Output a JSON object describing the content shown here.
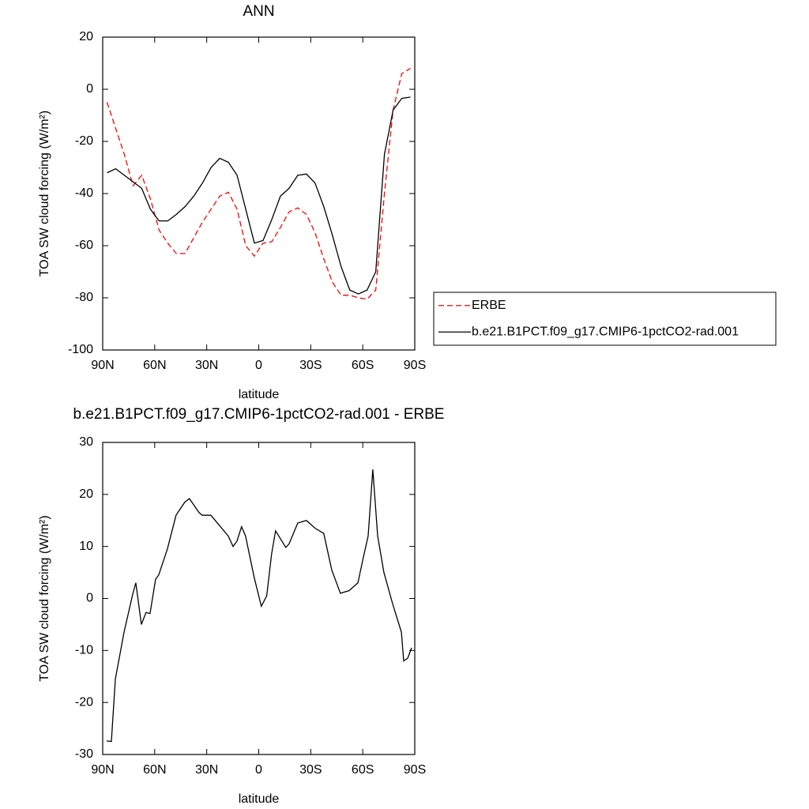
{
  "chart_data": [
    {
      "type": "line",
      "title": "ANN",
      "xlabel": "latitude",
      "ylabel": "TOA SW cloud forcing (W/m²)",
      "x": [
        87.5,
        82.5,
        77.5,
        72.5,
        67.5,
        62.5,
        57.5,
        52.5,
        47.5,
        42.5,
        37.5,
        32.5,
        27.5,
        22.5,
        17.5,
        12.5,
        7.5,
        2.5,
        -2.5,
        -7.5,
        -12.5,
        -17.5,
        -22.5,
        -27.5,
        -32.5,
        -37.5,
        -42.5,
        -47.5,
        -52.5,
        -57.5,
        -62.5,
        -67.5,
        -72.5,
        -77.5,
        -82.5,
        -87.5
      ],
      "series": [
        {
          "name": "ERBE",
          "color": "#ff0000",
          "line_style": "dashed",
          "values": [
            -5,
            -15,
            -25,
            -37,
            -33,
            -42,
            -54,
            -59,
            -63,
            -63,
            -57,
            -51,
            -46,
            -41,
            -39.5,
            -46,
            -60,
            -64,
            -59,
            -58.5,
            -53,
            -47,
            -45.5,
            -48,
            -55,
            -65,
            -74,
            -79,
            -79,
            -80,
            -80.5,
            -77,
            -40,
            -8,
            6,
            8
          ]
        },
        {
          "name": "b.e21.B1PCT.f09_g17.CMIP6-1pctCO2-rad.001",
          "color": "#000000",
          "line_style": "solid",
          "values": [
            -32,
            -30.5,
            -33,
            -35.5,
            -38,
            -46,
            -50.5,
            -50.5,
            -48,
            -45,
            -41,
            -36,
            -30,
            -26.5,
            -28,
            -33,
            -46,
            -59,
            -58,
            -50,
            -41,
            -38,
            -33,
            -32.5,
            -36,
            -45,
            -56,
            -68,
            -77,
            -78.5,
            -77,
            -70,
            -25,
            -8,
            -3.5,
            -3
          ]
        }
      ],
      "xlim": [
        90,
        -90
      ],
      "xticks": [
        {
          "value": 90,
          "label": "90N"
        },
        {
          "value": 60,
          "label": "60N"
        },
        {
          "value": 30,
          "label": "30N"
        },
        0,
        {
          "value": -30,
          "label": "30S"
        },
        {
          "value": -60,
          "label": "60S"
        },
        {
          "value": -90,
          "label": "90S"
        }
      ],
      "ylim": [
        -100,
        20
      ],
      "yticks": [
        -100,
        -80,
        -60,
        -40,
        -20,
        0,
        20
      ],
      "grid": false,
      "legend": "outside-right"
    },
    {
      "type": "line",
      "title": "b.e21.B1PCT.f09_g17.CMIP6-1pctCO2-rad.001 - ERBE",
      "xlabel": "latitude",
      "ylabel": "TOA SW cloud forcing (W/m²)",
      "x": [
        87.7,
        85,
        82.7,
        77.7,
        72.7,
        70.9,
        67.7,
        65,
        62.7,
        59.5,
        57.7,
        52.7,
        47.7,
        42.7,
        40,
        34.4,
        32.6,
        27.6,
        22.6,
        17.6,
        14.8,
        12.6,
        9.9,
        7.6,
        2.6,
        -1.5,
        -4.6,
        -7.4,
        -9.7,
        -12.5,
        -15.6,
        -17.5,
        -22.5,
        -27.5,
        -32.5,
        -37.5,
        -42.1,
        -47.1,
        -52.1,
        -57.2,
        -60.4,
        -63.1,
        -65.8,
        -68.6,
        -72.2,
        -77.2,
        -82.3,
        -83.6,
        -85.9,
        -88.2
      ],
      "series": [
        {
          "color": "#000000",
          "line_style": "solid",
          "values": [
            -27.4,
            -27.5,
            -15.5,
            -6.5,
            0.8,
            3,
            -5,
            -2.7,
            -2.9,
            3.7,
            4.5,
            9.5,
            16,
            18.5,
            19.2,
            16.5,
            16,
            16,
            14,
            12,
            10,
            11,
            13.8,
            12,
            4,
            -1.5,
            0.5,
            8.5,
            13,
            11.5,
            9.8,
            10.5,
            14.5,
            15,
            13.5,
            12.5,
            5.5,
            1,
            1.5,
            3,
            8,
            12,
            24.8,
            12,
            5,
            -1,
            -6.5,
            -12,
            -11.5,
            -9.5
          ]
        }
      ],
      "xlim": [
        90,
        -90
      ],
      "xticks": [
        {
          "value": 90,
          "label": "90N"
        },
        {
          "value": 60,
          "label": "60N"
        },
        {
          "value": 30,
          "label": "30N"
        },
        0,
        {
          "value": -30,
          "label": "30S"
        },
        {
          "value": -60,
          "label": "60S"
        },
        {
          "value": -90,
          "label": "90S"
        }
      ],
      "ylim": [
        -30,
        30
      ],
      "yticks": [
        -30,
        -20,
        -10,
        0,
        10,
        20,
        30
      ],
      "grid": false
    }
  ]
}
